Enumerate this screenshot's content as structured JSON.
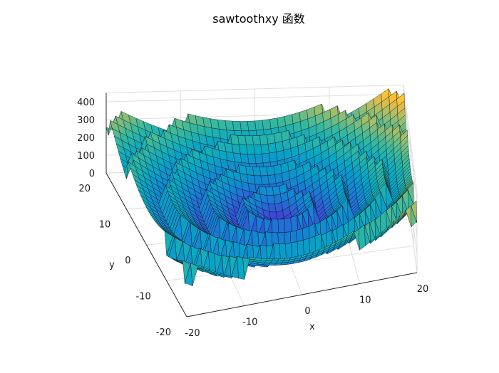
{
  "chart_data": {
    "type": "surface",
    "title": "sawtoothxy 函数",
    "xlabel": "x",
    "ylabel": "y",
    "zlabel": "",
    "xlim": [
      -20,
      20
    ],
    "ylim": [
      -20,
      20
    ],
    "zlim": [
      0,
      450
    ],
    "xticks": [
      "-20",
      "-10",
      "0",
      "10",
      "20"
    ],
    "yticks": [
      "-20",
      "-10",
      "0",
      "10",
      "20"
    ],
    "zticks": [
      "0",
      "100",
      "200",
      "300",
      "400"
    ],
    "grid": true,
    "colormap": "parula",
    "edge_color": "#000000",
    "function": "sawtoothxy",
    "z_range_observed": [
      0,
      450
    ]
  }
}
